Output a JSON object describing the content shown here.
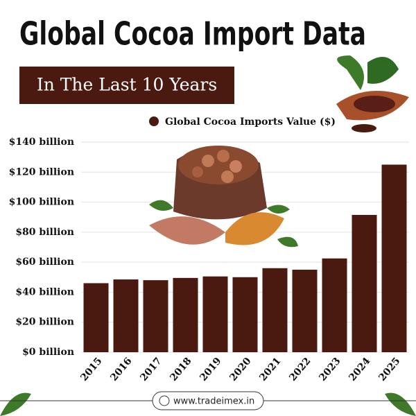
{
  "chart_data": {
    "type": "bar",
    "title": "Global Cocoa Import Data",
    "subtitle": "In The Last 10 Years",
    "series": [
      {
        "name": "Global Cocoa Imports Value ($)",
        "color": "#4a1a10",
        "values": [
          46,
          48.5,
          48,
          49.5,
          50.5,
          50,
          56,
          55,
          62.5,
          91.5,
          125
        ]
      }
    ],
    "categories": [
      "2015",
      "2016",
      "2017",
      "2018",
      "2019",
      "2020",
      "2021",
      "2022",
      "2023",
      "2024",
      "2025"
    ],
    "ylim": [
      0,
      140
    ],
    "yticks": [
      {
        "value": 0,
        "label": "$0 billion"
      },
      {
        "value": 20,
        "label": "$20 billion"
      },
      {
        "value": 40,
        "label": "$40 billion"
      },
      {
        "value": 60,
        "label": "$60 billion"
      },
      {
        "value": 80,
        "label": "$80 billion"
      },
      {
        "value": 100,
        "label": "$100 billion"
      },
      {
        "value": 120,
        "label": "$120 billion"
      },
      {
        "value": 140,
        "label": "$140 billion"
      }
    ],
    "grid": true,
    "footer": "www.tradeimex.in"
  }
}
